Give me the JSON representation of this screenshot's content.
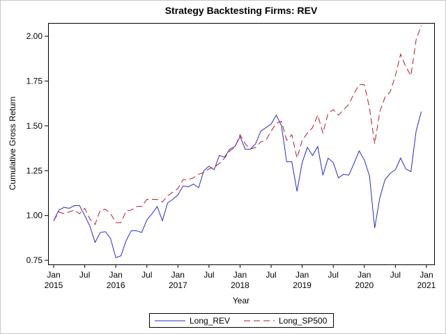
{
  "chart_data": {
    "type": "line",
    "title": "Strategy Backtesting  Firms: REV",
    "x_label": "Year",
    "y_label": "Cumulative Gross Return",
    "x": [
      "2015-01",
      "2015-02",
      "2015-03",
      "2015-04",
      "2015-05",
      "2015-06",
      "2015-07",
      "2015-08",
      "2015-09",
      "2015-10",
      "2015-11",
      "2015-12",
      "2016-01",
      "2016-02",
      "2016-03",
      "2016-04",
      "2016-05",
      "2016-06",
      "2016-07",
      "2016-08",
      "2016-09",
      "2016-10",
      "2016-11",
      "2016-12",
      "2017-01",
      "2017-02",
      "2017-03",
      "2017-04",
      "2017-05",
      "2017-06",
      "2017-07",
      "2017-08",
      "2017-09",
      "2017-10",
      "2017-11",
      "2017-12",
      "2018-01",
      "2018-02",
      "2018-03",
      "2018-04",
      "2018-05",
      "2018-06",
      "2018-07",
      "2018-08",
      "2018-09",
      "2018-10",
      "2018-11",
      "2018-12",
      "2019-01",
      "2019-02",
      "2019-03",
      "2019-04",
      "2019-05",
      "2019-06",
      "2019-07",
      "2019-08",
      "2019-09",
      "2019-10",
      "2019-11",
      "2019-12",
      "2020-01",
      "2020-02",
      "2020-03",
      "2020-04",
      "2020-05",
      "2020-06",
      "2020-07",
      "2020-08",
      "2020-09",
      "2020-10",
      "2020-11",
      "2020-12"
    ],
    "series": [
      {
        "name": "Long_REV",
        "color": "#2929c8",
        "dash": "none",
        "values": [
          0.97,
          1.03,
          1.045,
          1.04,
          1.055,
          1.055,
          1.0,
          0.94,
          0.85,
          0.905,
          0.91,
          0.87,
          0.765,
          0.775,
          0.86,
          0.915,
          0.915,
          0.905,
          0.975,
          1.01,
          1.05,
          0.97,
          1.07,
          1.09,
          1.115,
          1.165,
          1.16,
          1.175,
          1.155,
          1.25,
          1.275,
          1.255,
          1.335,
          1.325,
          1.37,
          1.385,
          1.44,
          1.37,
          1.37,
          1.4,
          1.47,
          1.49,
          1.51,
          1.56,
          1.5,
          1.3,
          1.3,
          1.135,
          1.295,
          1.38,
          1.335,
          1.385,
          1.225,
          1.32,
          1.295,
          1.21,
          1.23,
          1.225,
          1.29,
          1.36,
          1.31,
          1.22,
          0.93,
          1.1,
          1.2,
          1.235,
          1.255,
          1.32,
          1.26,
          1.245,
          1.47,
          1.58
        ]
      },
      {
        "name": "Long_SP500",
        "color": "#b0182a",
        "dash": "9,5",
        "values": [
          0.97,
          1.02,
          1.01,
          1.02,
          1.03,
          1.01,
          1.04,
          0.98,
          0.95,
          1.03,
          1.035,
          1.01,
          0.96,
          0.96,
          1.025,
          1.03,
          1.05,
          1.05,
          1.09,
          1.09,
          1.09,
          1.075,
          1.11,
          1.13,
          1.15,
          1.2,
          1.2,
          1.21,
          1.23,
          1.24,
          1.26,
          1.27,
          1.29,
          1.32,
          1.36,
          1.38,
          1.45,
          1.4,
          1.37,
          1.38,
          1.41,
          1.42,
          1.47,
          1.515,
          1.525,
          1.42,
          1.45,
          1.32,
          1.42,
          1.46,
          1.49,
          1.56,
          1.46,
          1.57,
          1.59,
          1.56,
          1.59,
          1.62,
          1.68,
          1.73,
          1.73,
          1.6,
          1.4,
          1.58,
          1.66,
          1.69,
          1.78,
          1.9,
          1.83,
          1.78,
          1.98,
          2.06
        ]
      }
    ],
    "ylim": [
      0.727,
      2.074
    ],
    "yticks": [
      {
        "value": 0.75,
        "label": "0.75"
      },
      {
        "value": 1.0,
        "label": "1.00"
      },
      {
        "value": 1.25,
        "label": "1.25"
      },
      {
        "value": 1.5,
        "label": "1.50"
      },
      {
        "value": 1.75,
        "label": "1.75"
      },
      {
        "value": 2.0,
        "label": "2.00"
      }
    ],
    "xticks": [
      {
        "value": "2015-01",
        "label": "Jan",
        "year": "2015"
      },
      {
        "value": "2015-07",
        "label": "Jul"
      },
      {
        "value": "2016-01",
        "label": "Jan",
        "year": "2016"
      },
      {
        "value": "2016-07",
        "label": "Jul"
      },
      {
        "value": "2017-01",
        "label": "Jan",
        "year": "2017"
      },
      {
        "value": "2017-07",
        "label": "Jul"
      },
      {
        "value": "2018-01",
        "label": "Jan",
        "year": "2018"
      },
      {
        "value": "2018-07",
        "label": "Jul"
      },
      {
        "value": "2019-01",
        "label": "Jan",
        "year": "2019"
      },
      {
        "value": "2019-07",
        "label": "Jul"
      },
      {
        "value": "2020-01",
        "label": "Jan",
        "year": "2020"
      },
      {
        "value": "2020-07",
        "label": "Jul"
      },
      {
        "value": "2021-01",
        "label": "Jan",
        "year": "2021"
      }
    ],
    "legend": "bottom"
  }
}
